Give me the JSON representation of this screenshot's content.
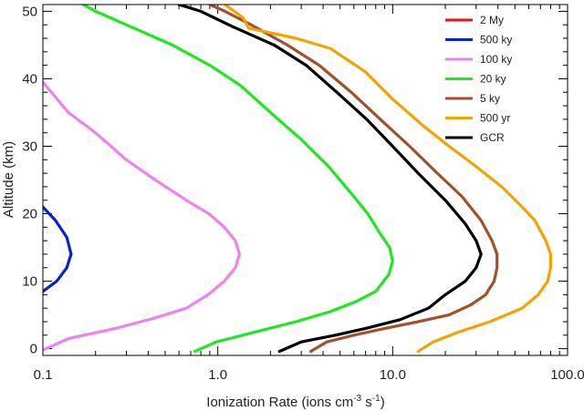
{
  "chart_data": {
    "type": "line",
    "xlabel": "Ionization Rate (ions cm",
    "xlabel_sup1": "-3",
    "xlabel_mid": " s",
    "xlabel_sup2": "-1",
    "xlabel_end": ")",
    "ylabel": "Altitude (km)",
    "xscale": "log",
    "xlim": [
      0.1,
      100
    ],
    "ylim": [
      -1,
      51
    ],
    "x_ticks": [
      0.1,
      1,
      10,
      100
    ],
    "x_tick_labels": [
      "0.1",
      "1.0",
      "10.0",
      "100.0"
    ],
    "y_ticks": [
      0,
      10,
      20,
      30,
      40,
      50
    ],
    "y_tick_labels": [
      "0",
      "10",
      "20",
      "30",
      "40",
      "50"
    ],
    "grid": false,
    "legend_position": "top-right",
    "series": [
      {
        "name": "2 My",
        "color": "#e8121d",
        "points": []
      },
      {
        "name": "500 ky",
        "color": "#0a20d6",
        "points": [
          [
            0.1,
            8.5
          ],
          [
            0.12,
            10
          ],
          [
            0.137,
            12
          ],
          [
            0.145,
            14
          ],
          [
            0.137,
            16.5
          ],
          [
            0.118,
            19
          ],
          [
            0.1,
            21
          ]
        ]
      },
      {
        "name": "100 ky",
        "color": "#ee82ee",
        "points": [
          [
            0.1,
            -0.2
          ],
          [
            0.14,
            1.5
          ],
          [
            0.26,
            3
          ],
          [
            0.43,
            4.5
          ],
          [
            0.66,
            6
          ],
          [
            0.88,
            8
          ],
          [
            1.09,
            10
          ],
          [
            1.26,
            12
          ],
          [
            1.33,
            14
          ],
          [
            1.26,
            16
          ],
          [
            1.09,
            18
          ],
          [
            0.89,
            20
          ],
          [
            0.66,
            22
          ],
          [
            0.44,
            25
          ],
          [
            0.3,
            28
          ],
          [
            0.2,
            32
          ],
          [
            0.14,
            35
          ],
          [
            0.1,
            39.5
          ]
        ]
      },
      {
        "name": "20 ky",
        "color": "#1ee81e",
        "points": [
          [
            0.74,
            -0.4
          ],
          [
            0.98,
            1
          ],
          [
            1.65,
            2.5
          ],
          [
            2.8,
            4
          ],
          [
            4.4,
            5.5
          ],
          [
            6.2,
            7
          ],
          [
            8.0,
            8.5
          ],
          [
            9.5,
            11
          ],
          [
            10.0,
            13
          ],
          [
            9.6,
            15
          ],
          [
            8.5,
            17
          ],
          [
            7.2,
            20
          ],
          [
            5.8,
            23
          ],
          [
            4.3,
            27
          ],
          [
            3.0,
            31
          ],
          [
            2.0,
            35
          ],
          [
            1.35,
            39
          ],
          [
            0.9,
            42
          ],
          [
            0.55,
            45
          ],
          [
            0.3,
            48
          ],
          [
            0.2,
            50
          ],
          [
            0.17,
            51
          ]
        ]
      },
      {
        "name": "5 ky",
        "color": "#a0522d",
        "points": [
          [
            3.4,
            -0.4
          ],
          [
            4.2,
            1
          ],
          [
            6.0,
            2
          ],
          [
            9.0,
            3
          ],
          [
            14,
            4
          ],
          [
            21,
            5
          ],
          [
            28,
            6.5
          ],
          [
            34,
            8
          ],
          [
            38,
            10
          ],
          [
            39.5,
            12
          ],
          [
            39.5,
            14
          ],
          [
            37,
            16
          ],
          [
            32,
            19
          ],
          [
            25,
            22.5
          ],
          [
            18,
            26
          ],
          [
            12.5,
            30
          ],
          [
            8.5,
            34
          ],
          [
            5.8,
            38
          ],
          [
            3.8,
            42
          ],
          [
            2.5,
            45
          ],
          [
            1.55,
            48
          ],
          [
            1.1,
            50
          ],
          [
            0.9,
            51
          ]
        ]
      },
      {
        "name": "500 yr",
        "color": "#f2a400",
        "points": [
          [
            14,
            -0.4
          ],
          [
            17,
            1
          ],
          [
            24,
            2.5
          ],
          [
            36,
            4
          ],
          [
            55,
            6
          ],
          [
            68,
            8
          ],
          [
            77,
            10
          ],
          [
            80,
            12
          ],
          [
            80,
            14
          ],
          [
            75,
            16
          ],
          [
            65,
            19
          ],
          [
            55,
            21
          ],
          [
            42,
            24
          ],
          [
            30,
            27
          ],
          [
            21,
            30
          ],
          [
            15,
            33
          ],
          [
            10,
            37
          ],
          [
            7,
            41
          ],
          [
            4.4,
            44.5
          ],
          [
            2.8,
            46
          ],
          [
            1.5,
            47.5
          ],
          [
            1.4,
            49
          ],
          [
            1.1,
            51
          ]
        ]
      },
      {
        "name": "GCR",
        "color": "#000000",
        "points": [
          [
            2.25,
            -0.4
          ],
          [
            3.0,
            1
          ],
          [
            4.7,
            2
          ],
          [
            7.0,
            3
          ],
          [
            11,
            4.3
          ],
          [
            16,
            6
          ],
          [
            20,
            8
          ],
          [
            26,
            10
          ],
          [
            30,
            12
          ],
          [
            32,
            14
          ],
          [
            30,
            16
          ],
          [
            26,
            18.5
          ],
          [
            20,
            22
          ],
          [
            14,
            26
          ],
          [
            10,
            30
          ],
          [
            7.1,
            34
          ],
          [
            4.8,
            38
          ],
          [
            3.2,
            42
          ],
          [
            2.1,
            45
          ],
          [
            1.2,
            47.8
          ],
          [
            0.8,
            50
          ],
          [
            0.6,
            51
          ]
        ]
      }
    ]
  }
}
